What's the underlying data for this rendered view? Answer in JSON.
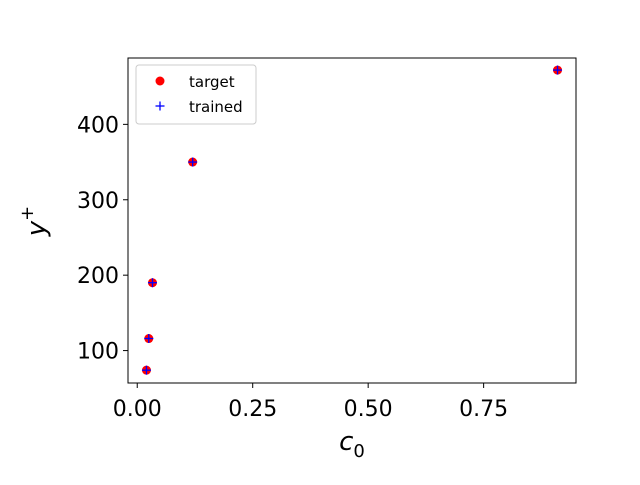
{
  "chart_data": {
    "type": "scatter",
    "xlabel": "c",
    "xlabel_sub": "0",
    "ylabel": "y",
    "ylabel_sup": "+",
    "xlim": [
      -0.02,
      0.95
    ],
    "ylim": [
      57,
      488
    ],
    "xticks": [
      0.0,
      0.25,
      0.5,
      0.75
    ],
    "xtick_labels": [
      "0.00",
      "0.25",
      "0.50",
      "0.75"
    ],
    "yticks": [
      100,
      200,
      300,
      400
    ],
    "ytick_labels": [
      "100",
      "200",
      "300",
      "400"
    ],
    "grid": false,
    "legend_position": "top-left",
    "series": [
      {
        "name": "target",
        "marker": "circle",
        "color": "#ff0000",
        "x": [
          0.02,
          0.025,
          0.033,
          0.12,
          0.91
        ],
        "y": [
          74,
          116,
          190,
          350,
          472
        ]
      },
      {
        "name": "trained",
        "marker": "plus",
        "color": "#0000ff",
        "x": [
          0.02,
          0.025,
          0.033,
          0.12,
          0.91
        ],
        "y": [
          74,
          116,
          190,
          350,
          472
        ]
      }
    ]
  }
}
